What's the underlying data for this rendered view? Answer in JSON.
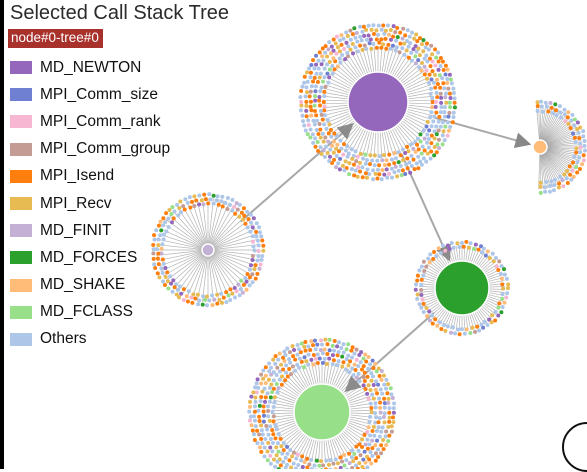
{
  "panel": {
    "title": "Selected Call Stack Tree",
    "node_label": "node#0-tree#0",
    "badge_color": "#a8312c"
  },
  "legend": [
    {
      "label": "MD_NEWTON",
      "color": "#9467bd"
    },
    {
      "label": "MPI_Comm_size",
      "color": "#6f7fd1"
    },
    {
      "label": "MPI_Comm_rank",
      "color": "#f7b6d2"
    },
    {
      "label": "MPI_Comm_group",
      "color": "#c49c94"
    },
    {
      "label": "MPI_Isend",
      "color": "#ff7f0e"
    },
    {
      "label": "MPI_Recv",
      "color": "#e7ba52"
    },
    {
      "label": "MD_FINIT",
      "color": "#c5b0d5"
    },
    {
      "label": "MD_FORCES",
      "color": "#2ca02c"
    },
    {
      "label": "MD_SHAKE",
      "color": "#ffbb78"
    },
    {
      "label": "MD_FCLASS",
      "color": "#98df8a"
    },
    {
      "label": "Others",
      "color": "#aec7e8"
    }
  ],
  "tree": {
    "clusters": [
      {
        "id": "md-newton-cluster",
        "center_function": "MD_NEWTON",
        "center_color": "#9467bd"
      },
      {
        "id": "md-shake-cluster",
        "center_function": "MD_SHAKE",
        "center_color": "#ffbb78"
      },
      {
        "id": "md-finit-cluster",
        "center_function": "MD_FINIT",
        "center_color": "#c5b0d5"
      },
      {
        "id": "md-forces-cluster",
        "center_function": "MD_FORCES",
        "center_color": "#2ca02c"
      },
      {
        "id": "md-fclass-cluster",
        "center_function": "MD_FCLASS",
        "center_color": "#98df8a"
      }
    ],
    "edges": [
      {
        "from": "md-finit-cluster",
        "to": "md-newton-cluster"
      },
      {
        "from": "md-newton-cluster",
        "to": "md-shake-cluster"
      },
      {
        "from": "md-newton-cluster",
        "to": "md-forces-cluster"
      },
      {
        "from": "md-forces-cluster",
        "to": "md-fclass-cluster"
      }
    ],
    "colors": {
      "edge": "#a8a8a8",
      "spoke": "#9a9a9a",
      "hub_stroke": "#ffffff"
    }
  }
}
